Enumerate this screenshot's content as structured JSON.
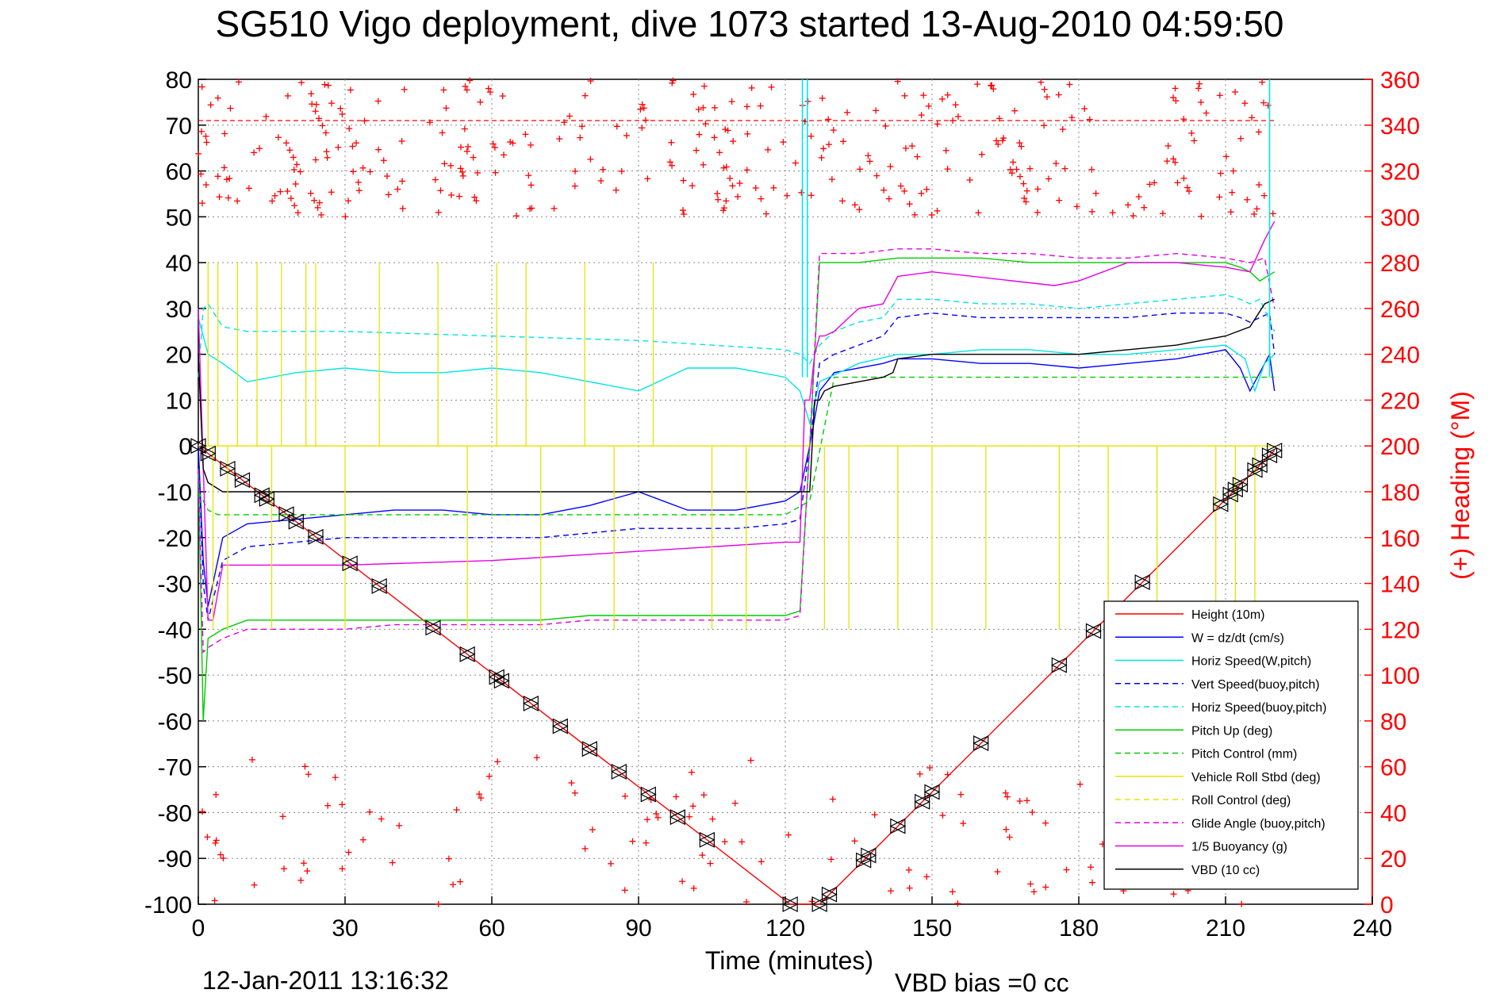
{
  "chart_data": {
    "type": "line",
    "title": "SG510 Vigo deployment, dive 1073 started 13-Aug-2010 04:59:50",
    "xlabel": "Time (minutes)",
    "ylabel_right": "(+) Heading (°M)",
    "footer_date": "12-Jan-2011 13:16:32",
    "footer_bias": "VBD bias =0 cc",
    "xlim": [
      0,
      240
    ],
    "ylim": [
      -100,
      80
    ],
    "ylim_right": [
      0,
      360
    ],
    "xticks": [
      0,
      30,
      60,
      90,
      120,
      150,
      180,
      210,
      240
    ],
    "yticks": [
      -100,
      -90,
      -80,
      -70,
      -60,
      -50,
      -40,
      -30,
      -20,
      -10,
      0,
      10,
      20,
      30,
      40,
      50,
      60,
      70,
      80
    ],
    "yticks_right": [
      0,
      20,
      40,
      60,
      80,
      100,
      120,
      140,
      160,
      180,
      200,
      220,
      240,
      260,
      280,
      300,
      320,
      340,
      360
    ],
    "grid": true,
    "legend_position": "bottom-right",
    "colors": {
      "red": "#ff0000",
      "blue": "#0000ff",
      "cyan": "#00e5e5",
      "green": "#00cc00",
      "yellow": "#e5e500",
      "magenta": "#e500e5",
      "black": "#000000"
    },
    "series": [
      {
        "name": "Height (10m)",
        "color": "red",
        "style": "solid",
        "x": [
          0,
          121,
          127,
          220
        ],
        "y": [
          0,
          -100,
          -100,
          -1
        ]
      },
      {
        "name": "W = dz/dt (cm/s)",
        "color": "blue",
        "style": "solid",
        "x": [
          0,
          1,
          2,
          5,
          10,
          20,
          30,
          40,
          50,
          60,
          70,
          80,
          90,
          100,
          110,
          120,
          123,
          125,
          127,
          130,
          140,
          143,
          150,
          160,
          170,
          180,
          190,
          200,
          205,
          210,
          213,
          215,
          217,
          219,
          220
        ],
        "y": [
          0,
          -25,
          -35,
          -20,
          -17,
          -16,
          -15,
          -14,
          -14,
          -15,
          -15,
          -13,
          -10,
          -14,
          -14,
          -12,
          -10,
          0,
          12,
          16,
          18,
          19,
          19,
          18,
          18,
          17,
          18,
          19,
          20,
          21,
          17,
          12,
          16,
          20,
          12
        ]
      },
      {
        "name": "Horiz Speed(W,pitch)",
        "color": "cyan",
        "style": "solid",
        "x": [
          0,
          2,
          5,
          10,
          20,
          30,
          40,
          50,
          60,
          70,
          80,
          90,
          100,
          110,
          120,
          123,
          125,
          127,
          135,
          143,
          150,
          160,
          170,
          180,
          190,
          200,
          210,
          214,
          216,
          218,
          220
        ],
        "y": [
          28,
          20,
          18,
          14,
          16,
          17,
          16,
          16,
          17,
          16,
          14,
          12,
          17,
          17,
          15,
          12,
          5,
          14,
          18,
          20,
          20,
          21,
          21,
          20,
          20,
          21,
          22,
          19,
          12,
          18,
          20
        ]
      },
      {
        "name": "Vert Speed(buoy,pitch)",
        "color": "blue",
        "style": "dashed",
        "x": [
          0,
          1,
          2,
          5,
          10,
          20,
          30,
          40,
          50,
          60,
          70,
          80,
          90,
          100,
          110,
          120,
          123,
          125,
          127,
          130,
          135,
          140,
          143,
          150,
          160,
          170,
          180,
          190,
          200,
          210,
          213,
          215,
          217,
          219,
          220
        ],
        "y": [
          0,
          -30,
          -38,
          -25,
          -22,
          -21,
          -20,
          -20,
          -20,
          -20,
          -20,
          -19,
          -18,
          -18,
          -18,
          -17,
          -16,
          0,
          18,
          20,
          22,
          24,
          28,
          29,
          28,
          28,
          28,
          28,
          29,
          29,
          28,
          27,
          28,
          29,
          20
        ]
      },
      {
        "name": "Horiz Speed(buoy,pitch)",
        "color": "cyan",
        "style": "dashed",
        "x": [
          0,
          1,
          2,
          5,
          10,
          20,
          30,
          60,
          90,
          120,
          123,
          125,
          127,
          130,
          135,
          140,
          143,
          150,
          160,
          170,
          180,
          190,
          200,
          210,
          213,
          215,
          217,
          220
        ],
        "y": [
          15,
          30,
          31,
          26,
          25,
          25,
          25,
          24,
          23,
          21,
          20,
          18,
          22,
          25,
          27,
          28,
          32,
          32,
          31,
          31,
          30,
          31,
          32,
          33,
          32,
          31,
          32,
          25
        ]
      },
      {
        "name": "Pitch Up (deg)",
        "color": "green",
        "style": "solid",
        "x": [
          0,
          1,
          2,
          5,
          10,
          20,
          30,
          40,
          50,
          60,
          70,
          80,
          90,
          100,
          110,
          120,
          123,
          125,
          127,
          135,
          143,
          150,
          160,
          170,
          180,
          190,
          200,
          210,
          213,
          215,
          217,
          220
        ],
        "y": [
          -5,
          -60,
          -42,
          -40,
          -38,
          -38,
          -38,
          -38,
          -38,
          -38,
          -38,
          -37,
          -37,
          -37,
          -37,
          -37,
          -36,
          0,
          40,
          40,
          41,
          41,
          41,
          40,
          40,
          40,
          40,
          40,
          39,
          38,
          36,
          38
        ]
      },
      {
        "name": "Pitch Control (mm)",
        "color": "green",
        "style": "dashed",
        "x": [
          0,
          2,
          4,
          120,
          125,
          130,
          220
        ],
        "y": [
          -10,
          -14,
          -15,
          -15,
          -12,
          15,
          15
        ]
      },
      {
        "name": "Vehicle Roll Stbd (deg)",
        "color": "yellow",
        "style": "solid",
        "x": [
          0,
          6,
          10,
          30,
          60,
          90,
          120,
          125,
          127,
          130,
          150,
          180,
          210,
          215,
          220
        ],
        "y": [
          0,
          0,
          0,
          0,
          0,
          0,
          0,
          0,
          0,
          0,
          0,
          0,
          0,
          0,
          0
        ]
      },
      {
        "name": "Roll Control (deg)",
        "color": "yellow",
        "style": "dashed",
        "x": [
          0,
          120,
          125,
          220
        ],
        "y": [
          0,
          0,
          0,
          0
        ]
      },
      {
        "name": "Glide Angle (buoy,pitch)",
        "color": "magenta",
        "style": "dashed",
        "x": [
          0,
          1,
          2,
          5,
          10,
          20,
          30,
          40,
          50,
          60,
          70,
          80,
          90,
          100,
          110,
          120,
          123,
          125,
          127,
          135,
          143,
          150,
          160,
          170,
          180,
          190,
          200,
          210,
          215,
          218,
          220
        ],
        "y": [
          -5,
          -45,
          -44,
          -42,
          -40,
          -40,
          -40,
          -39,
          -39,
          -39,
          -39,
          -38,
          -38,
          -38,
          -38,
          -38,
          -37,
          0,
          42,
          42,
          43,
          43,
          42,
          42,
          41,
          41,
          42,
          41,
          40,
          41,
          30
        ]
      },
      {
        "name": "1/5 Buoyancy (g)",
        "color": "magenta",
        "style": "solid",
        "x": [
          0,
          2,
          3,
          5,
          10,
          30,
          60,
          90,
          120,
          123,
          124,
          125,
          126,
          127,
          128,
          130,
          135,
          140,
          143,
          150,
          175,
          180,
          190,
          200,
          210,
          215,
          218,
          220
        ],
        "y": [
          30,
          -38,
          -38,
          -26,
          -26,
          -26,
          -25,
          -23,
          -21,
          -21,
          10,
          10,
          20,
          24,
          24,
          25,
          30,
          31,
          37,
          38,
          35,
          36,
          40,
          40,
          39,
          38,
          45,
          49
        ]
      },
      {
        "name": "VBD (10 cc)",
        "color": "black",
        "style": "solid",
        "x": [
          0,
          1,
          2,
          5,
          10,
          60,
          90,
          120,
          123,
          125,
          126,
          127,
          128,
          130,
          135,
          140,
          142,
          143,
          150,
          165,
          170,
          180,
          190,
          200,
          205,
          210,
          215,
          218,
          220
        ],
        "y": [
          20,
          -5,
          -8,
          -10,
          -10,
          -10,
          -10,
          -10,
          -10,
          -10,
          10,
          10,
          12,
          13,
          14,
          15,
          16,
          19,
          20,
          20,
          20,
          20,
          21,
          22,
          23,
          24,
          26,
          31,
          32
        ]
      }
    ],
    "heading_dashed_level": 342,
    "heading_points_desc": "(+) markers plotted against right axis, scattered between roughly 0-60 and 290-360 degrees"
  }
}
